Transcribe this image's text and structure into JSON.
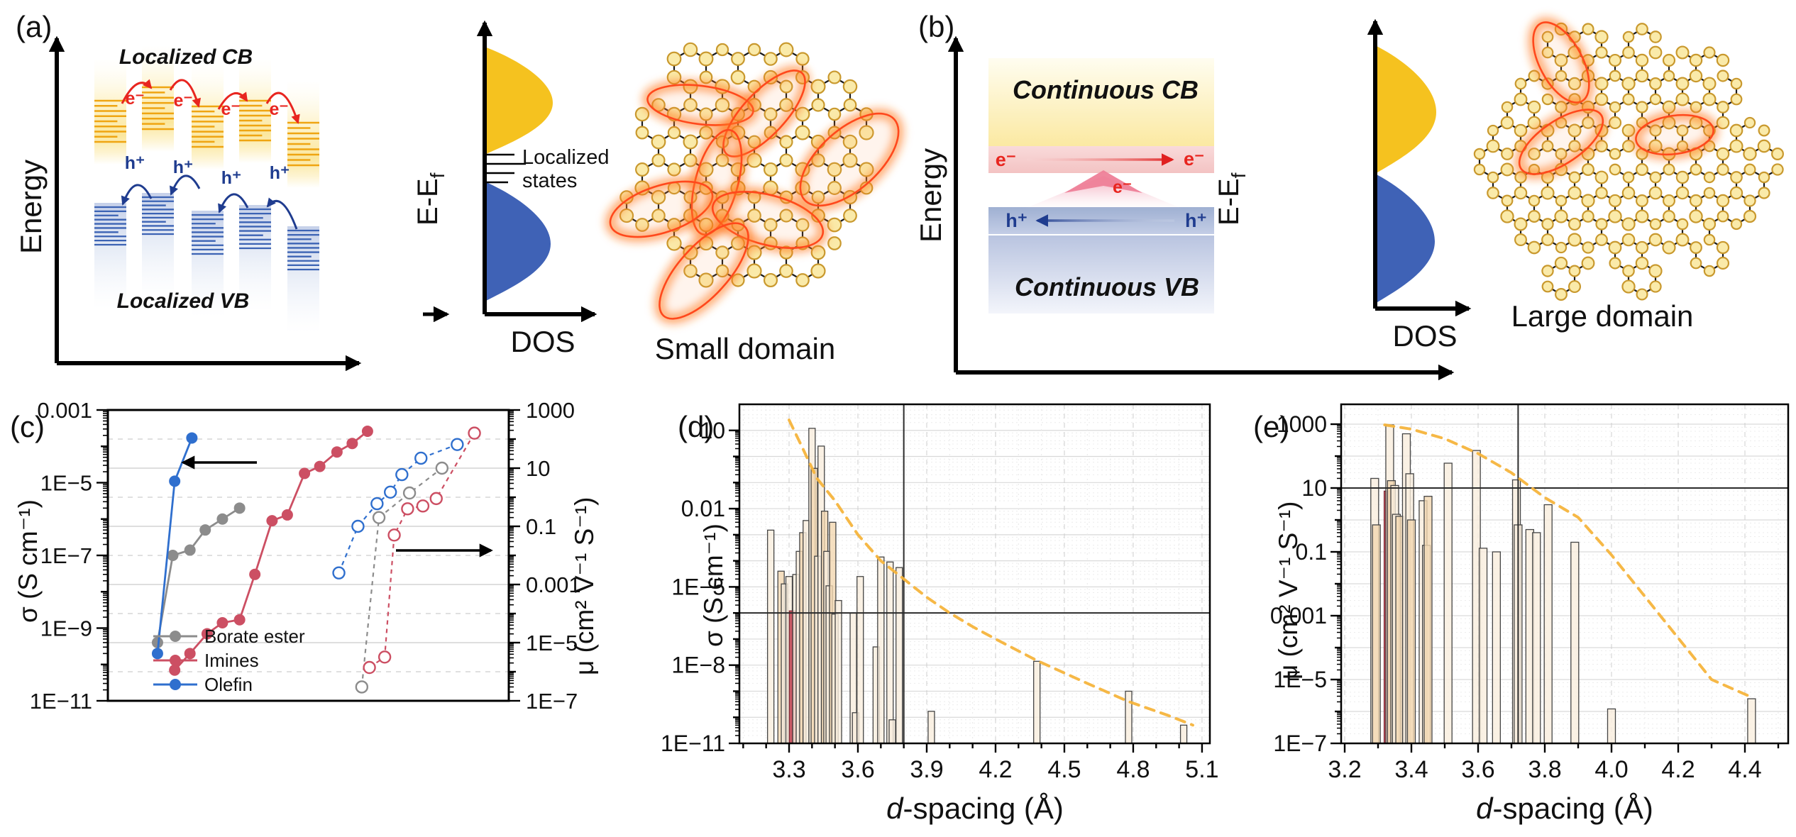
{
  "colors": {
    "dos_yellow": "#f5c21f",
    "dos_blue": "#3f62b6",
    "cb_line": "#efa512",
    "vb_line": "#3c63b4",
    "electron_red": "#e8251f",
    "hole_navy": "#1f3c8f",
    "glow_red": "#ff481c",
    "node_fill": "#faeaa9",
    "node_stroke": "#c9992e",
    "bond": "#1a1a1a",
    "series_borate": "#8c8c8c",
    "series_imines": "#cc4f63",
    "series_olefin": "#2f6fce",
    "bar_fill": "#f9eedd",
    "bar_fill_alt": "#f2d7b0",
    "bar_stroke": "#454545",
    "bar_highlight": "#c24a58",
    "trend_orange": "#f5b43c",
    "axis_black": "#000000"
  },
  "panels": {
    "a": {
      "label": "(a)",
      "energy_axis_label": "Energy",
      "cb_label": "Localized CB",
      "vb_label": "Localized VB",
      "electron_label": "e⁻",
      "hole_label": "h⁺",
      "dos": {
        "x_label": "DOS",
        "y_label_main": "E-E",
        "y_label_sub": "f",
        "annotation_line1": "Localized",
        "annotation_line2": "states"
      },
      "domain_label": "Small domain"
    },
    "b": {
      "label": "(b)",
      "energy_axis_label": "Energy",
      "cb_label": "Continuous CB",
      "vb_label": "Continuous VB",
      "electron_label": "e⁻",
      "hole_label": "h⁺",
      "dos": {
        "x_label": "DOS",
        "y_label_main": "E-E",
        "y_label_sub": "f"
      },
      "domain_label": "Large domain"
    },
    "c": {
      "label": "(c)"
    },
    "d": {
      "label": "(d)"
    },
    "e": {
      "label": "(e)"
    }
  },
  "chart_data": [
    {
      "id": "c",
      "type": "scatter-line",
      "x_axis": {
        "note": "unlabeled material rank",
        "range": [
          0,
          21
        ]
      },
      "left_axis": {
        "label": "σ (S cm⁻¹)",
        "unit": "S cm-1",
        "tick_labels": [
          "0.001",
          "1E−5",
          "1E−7",
          "1E−9",
          "1E−11"
        ],
        "tick_decades": [
          -3,
          -5,
          -7,
          -9,
          -11
        ],
        "range_decades": [
          -11,
          -3
        ]
      },
      "right_axis": {
        "label": "μ (cm² V⁻¹ S⁻¹)",
        "unit": "cm2 V-1 s-1",
        "tick_labels": [
          "1000",
          "10",
          "0.1",
          "0.001",
          "1E−5",
          "1E−7"
        ],
        "tick_decades": [
          3,
          1,
          -1,
          -3,
          -5,
          -7
        ],
        "range_decades": [
          -7,
          3
        ]
      },
      "legend": [
        {
          "label": "Borate ester",
          "color_key": "series_borate"
        },
        {
          "label": "Imines",
          "color_key": "series_imines"
        },
        {
          "label": "Olefin",
          "color_key": "series_olefin"
        }
      ],
      "series_sigma": [
        {
          "name": "Borate ester",
          "color_key": "series_borate",
          "x": [
            2.6,
            3.4,
            4.3,
            5.1,
            6.0,
            6.9
          ],
          "y": [
            4e-10,
            1e-07,
            1.4e-07,
            5e-07,
            1e-06,
            2e-06
          ]
        },
        {
          "name": "Imines",
          "color_key": "series_imines",
          "x": [
            3.5,
            4.3,
            5.2,
            6.0,
            6.9,
            7.7,
            8.6,
            9.4,
            10.3,
            11.1,
            12.0,
            12.8,
            13.6
          ],
          "y": [
            7e-11,
            2e-10,
            7e-10,
            1.4e-09,
            1.7e-09,
            3e-08,
            9e-07,
            1.3e-06,
            1.8e-05,
            2.8e-05,
            7e-05,
            0.00012,
            0.00026
          ]
        },
        {
          "name": "Olefin",
          "color_key": "series_olefin",
          "x": [
            2.6,
            3.5,
            4.4
          ],
          "y": [
            2e-10,
            1.1e-05,
            0.00017
          ]
        }
      ],
      "series_mu": [
        {
          "name": "Borate ester",
          "color_key": "series_borate",
          "x": [
            13.3,
            14.2,
            15.8,
            17.5
          ],
          "y": [
            3e-07,
            0.2,
            1.4,
            10
          ]
        },
        {
          "name": "Imines",
          "color_key": "series_imines",
          "x": [
            13.7,
            14.5,
            15.0,
            15.7,
            16.5,
            17.2,
            19.2
          ],
          "y": [
            1.4e-06,
            3.2e-06,
            0.05,
            0.4,
            0.5,
            0.9,
            160
          ]
        },
        {
          "name": "Olefin",
          "color_key": "series_olefin",
          "x": [
            12.1,
            13.1,
            14.1,
            14.8,
            15.4,
            16.4,
            18.3
          ],
          "y": [
            0.0025,
            0.1,
            0.6,
            1.5,
            6,
            22,
            65
          ]
        }
      ]
    },
    {
      "id": "d",
      "type": "bar",
      "xlabel_italic": "d",
      "xlabel_rest": "-spacing (Å)",
      "ylabel": "σ (S cm⁻¹)",
      "x_ticks": [
        3.3,
        3.6,
        3.9,
        4.2,
        4.5,
        4.8,
        5.1
      ],
      "xlim": [
        3.08,
        5.14
      ],
      "y_tick_labels": [
        "10",
        "0.01",
        "1E−5",
        "1E−8",
        "1E−11"
      ],
      "y_tick_decades": [
        1,
        -2,
        -5,
        -8,
        -11
      ],
      "ylim": [
        1e-11,
        30
      ],
      "hline": 1e-06,
      "vline": 3.8,
      "highlight_d": 3.315,
      "bars": {
        "d": [
          3.22,
          3.265,
          3.28,
          3.3,
          3.315,
          3.33,
          3.345,
          3.36,
          3.375,
          3.4,
          3.41,
          3.425,
          3.44,
          3.455,
          3.465,
          3.475,
          3.49,
          3.5,
          3.515,
          3.58,
          3.59,
          3.61,
          3.68,
          3.7,
          3.74,
          3.75,
          3.78,
          3.92,
          4.38,
          4.78,
          5.02
        ],
        "v": [
          0.0015,
          4e-05,
          1.3e-05,
          2.5e-05,
          1.2e-06,
          3e-05,
          0.00023,
          0.0012,
          0.0035,
          12,
          0.35,
          0.00015,
          2.5,
          0.008,
          0.00023,
          1.1e-05,
          0.003,
          9e-07,
          3e-06,
          1e-06,
          1.5e-10,
          2.5e-05,
          5e-08,
          0.00014,
          9e-05,
          8e-11,
          5.5e-05,
          1.7e-10,
          1.4e-08,
          1e-09,
          5e-11
        ]
      },
      "trend": {
        "d": [
          3.3,
          3.36,
          3.42,
          3.5,
          3.6,
          3.7,
          3.8,
          3.9,
          4.0,
          4.1,
          4.2,
          4.38,
          4.6,
          4.78,
          4.95,
          5.06
        ],
        "v": [
          25,
          2,
          0.15,
          0.02,
          0.001,
          0.0001,
          2e-05,
          4e-06,
          1e-06,
          3e-07,
          1e-07,
          1.5e-08,
          2e-09,
          4e-10,
          1.2e-10,
          5e-11
        ]
      }
    },
    {
      "id": "e",
      "type": "bar",
      "xlabel_italic": "d",
      "xlabel_rest": "-spacing (Å)",
      "ylabel": "μ (cm² V⁻¹ S⁻¹)",
      "x_ticks": [
        3.2,
        3.4,
        3.6,
        3.8,
        4.0,
        4.2,
        4.4
      ],
      "xlim": [
        3.19,
        4.53
      ],
      "y_tick_labels": [
        "1000",
        "10",
        "0.1",
        "0.001",
        "1E−5",
        "1E−7"
      ],
      "y_tick_decades": [
        3,
        1,
        -1,
        -3,
        -5,
        -7
      ],
      "ylim": [
        1e-07,
        3000
      ],
      "hline": 10,
      "vline": 3.72,
      "highlight_d": 3.33,
      "bars": {
        "d": [
          3.29,
          3.295,
          3.33,
          3.335,
          3.34,
          3.35,
          3.355,
          3.365,
          3.385,
          3.395,
          3.4,
          3.435,
          3.445,
          3.45,
          3.51,
          3.595,
          3.615,
          3.655,
          3.715,
          3.72,
          3.755,
          3.775,
          3.81,
          3.89,
          4.0,
          4.42
        ],
        "v": [
          20,
          0.7,
          8,
          950,
          17,
          12,
          1.5,
          1.3,
          500,
          28,
          1.0,
          4,
          0.16,
          5.5,
          60,
          150,
          0.13,
          0.1,
          18,
          0.7,
          0.5,
          0.4,
          3,
          0.2,
          1.2e-06,
          2.5e-06
        ]
      },
      "trend": {
        "d": [
          3.32,
          3.4,
          3.5,
          3.6,
          3.7,
          3.8,
          3.9,
          4.0,
          4.1,
          4.2,
          4.3,
          4.42
        ],
        "v": [
          950,
          700,
          350,
          120,
          30,
          5,
          1.2,
          0.08,
          0.004,
          0.0002,
          1e-05,
          2.8e-06
        ]
      }
    }
  ]
}
